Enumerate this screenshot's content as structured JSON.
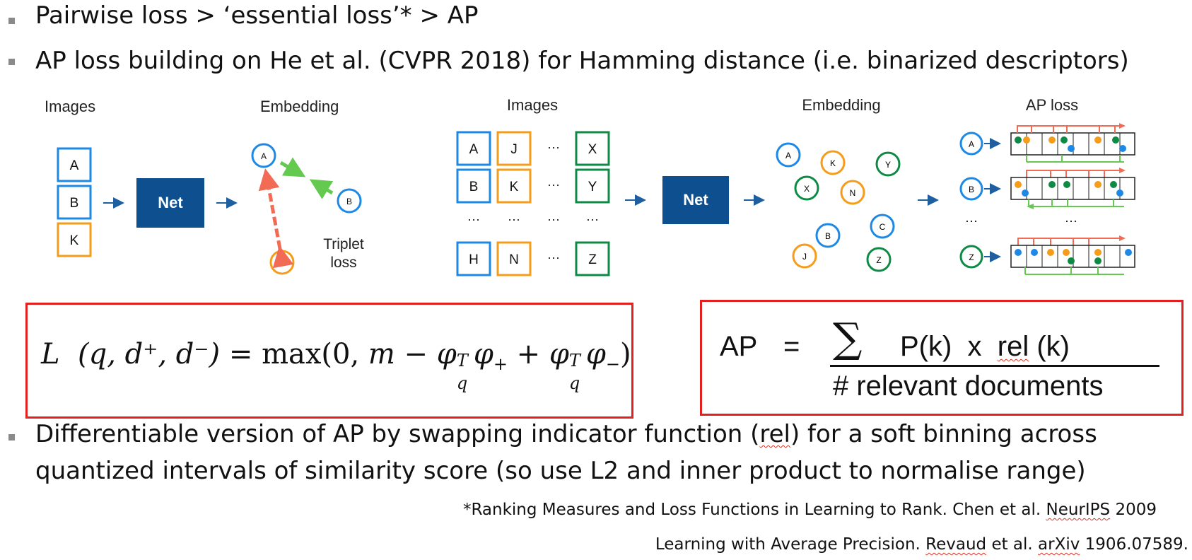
{
  "bullets": [
    "Pairwise loss > ‘essential loss’* > AP",
    "AP loss building on He et al. (CVPR 2018) for Hamming distance  (i.e. binarized descriptors)"
  ],
  "bullet3": {
    "pre": "Differentiable version of AP by swapping indicator function (",
    "rel": "rel",
    "post": ") for a soft binning across",
    "line2": "quantized intervals of similarity score (so use L2 and inner product to normalise range)"
  },
  "ref1": {
    "pre": "*Ranking Measures and Loss Functions in Learning to Rank. Chen et al. ",
    "venue": "NeurIPS",
    "post": " 2009"
  },
  "ref2": {
    "pre": "Learning with Average Precision.  ",
    "author": "Revaud",
    "mid": " et al. ",
    "venue": "arXiv",
    "post": " 1906.07589."
  },
  "figure": {
    "left": {
      "col_images": "Images",
      "col_embedding": "Embedding",
      "boxes": [
        "A",
        "B",
        "K"
      ],
      "net": "Net",
      "nodes": [
        "A",
        "B",
        "K"
      ],
      "caption_line1": "Triplet",
      "caption_line2": "loss"
    },
    "right": {
      "col_images": "Images",
      "col_embedding": "Embedding",
      "col_aploss": "AP loss",
      "grid_rows": [
        [
          "A",
          "J",
          "···",
          "X"
        ],
        [
          "B",
          "K",
          "···",
          "Y"
        ],
        [
          "···",
          "···",
          "···",
          "···"
        ],
        [
          "H",
          "N",
          "···",
          "Z"
        ]
      ],
      "net": "Net",
      "emb_nodes": [
        "A",
        "K",
        "Y",
        "X",
        "N",
        "C",
        "B",
        "J",
        "Z"
      ],
      "ap_queries": [
        "A",
        "B",
        "···",
        "Z"
      ],
      "ap_ellipsis": "···"
    },
    "colors": {
      "blue": "#1e88e5",
      "orange": "#f59c1a",
      "green": "#0e8a45",
      "net": "#0d4f8f",
      "pos_arrow": "#64c94f",
      "neg_arrow": "#f26b55",
      "red_box": "#e32020"
    }
  },
  "formula_triplet": {
    "L": "L",
    "args": "(q, d⁺, d⁻)",
    "eq": "=",
    "max": "max",
    "body": "(0, m − φ",
    "sub_q": "q",
    "sup_T": "T",
    "phi_plus": "φ",
    "sub_plus": "+",
    "plus": "+",
    "phi2": "φ",
    "sub_q2": "q",
    "sup_T2": "T",
    "phi_minus": "φ",
    "sub_minus": "−",
    "close": ")"
  },
  "formula_ap": {
    "lhs": "AP",
    "eq": "=",
    "sigma": "∑",
    "num_pre": "P(k)  x  ",
    "num_rel": "rel",
    "num_post": " (k)",
    "den": "# relevant documents"
  }
}
